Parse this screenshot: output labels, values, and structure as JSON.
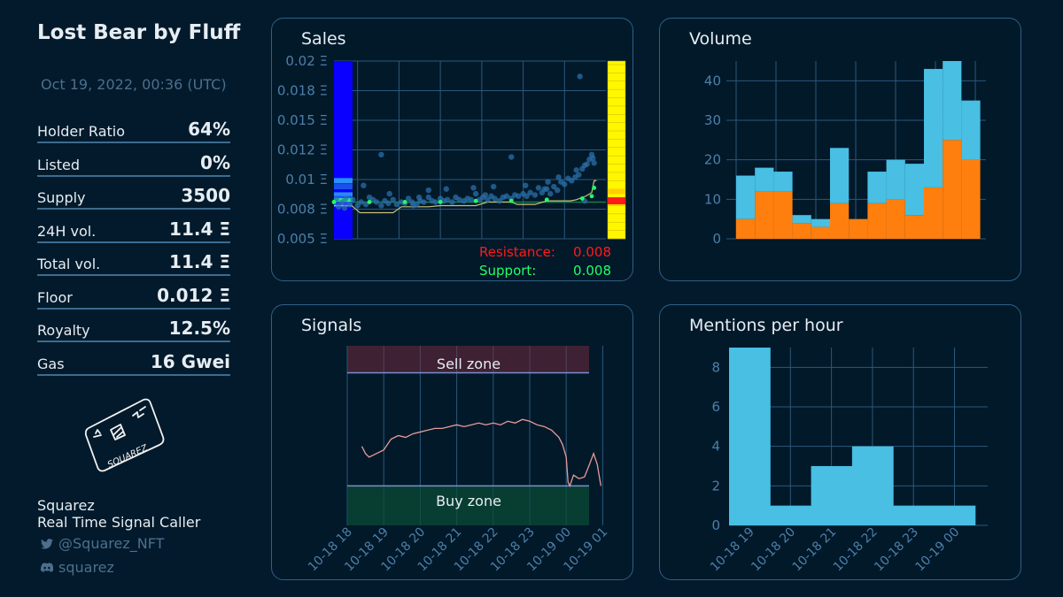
{
  "sidebar": {
    "title": "Lost Bear by Fluff",
    "date": "Oct 19, 2022, 00:36 (UTC)",
    "stats": [
      {
        "label": "Holder Ratio",
        "value": "64%"
      },
      {
        "label": "Listed",
        "value": "0%"
      },
      {
        "label": "Supply",
        "value": "3500"
      },
      {
        "label": "24H vol.",
        "value": "11.4 Ξ"
      },
      {
        "label": "Total vol.",
        "value": "11.4 Ξ"
      },
      {
        "label": "Floor",
        "value": "0.012 Ξ"
      },
      {
        "label": "Royalty",
        "value": "12.5%"
      },
      {
        "label": "Gas",
        "value": "16 Gwei"
      }
    ],
    "logo_text": "SQUAREZ",
    "brand_name": "Squarez",
    "brand_tagline": "Real Time Signal Caller",
    "twitter": "@Squarez_NFT",
    "discord": "squarez",
    "twitter_icon": "twitter-icon",
    "discord_icon": "discord-icon"
  },
  "colors": {
    "background": "#021a2b",
    "panel_border": "#2f5f84",
    "grid": "#2b587b",
    "tick": "#4d7fa8",
    "volume_blue": "#48bfe3",
    "volume_orange": "#ff7f0e",
    "resistance": "#ff1a1a",
    "support": "#22ff66"
  },
  "chart_data": [
    {
      "type": "scatter",
      "title": "Sales",
      "ytick_labels": [
        "0.005 Ξ",
        "0.008 Ξ",
        "0.01 Ξ",
        "0.012 Ξ",
        "0.015 Ξ",
        "0.018 Ξ",
        "0.02 Ξ"
      ],
      "ylim": [
        0.005,
        0.02
      ],
      "resistance_label": "Resistance:",
      "resistance_value": "0.008",
      "support_label": "Support:",
      "support_value": "0.008",
      "points": [
        [
          0.2,
          0.0083
        ],
        [
          0.4,
          0.0077
        ],
        [
          0.7,
          0.0081
        ],
        [
          1.0,
          0.0084
        ],
        [
          1.3,
          0.0079
        ],
        [
          1.6,
          0.0083
        ],
        [
          2.0,
          0.0078
        ],
        [
          2.3,
          0.0081
        ],
        [
          2.7,
          0.0079
        ],
        [
          3.0,
          0.0085
        ],
        [
          3.3,
          0.0083
        ],
        [
          3.6,
          0.0081
        ],
        [
          4.0,
          0.0078
        ],
        [
          4.3,
          0.0082
        ],
        [
          4.6,
          0.008
        ],
        [
          5.0,
          0.0083
        ],
        [
          5.3,
          0.0079
        ],
        [
          5.7,
          0.0081
        ],
        [
          6.0,
          0.008
        ],
        [
          6.3,
          0.0084
        ],
        [
          6.6,
          0.0081
        ],
        [
          7.0,
          0.0079
        ],
        [
          7.3,
          0.0082
        ],
        [
          7.6,
          0.0081
        ],
        [
          8.0,
          0.0085
        ],
        [
          8.3,
          0.0082
        ],
        [
          8.6,
          0.0081
        ],
        [
          9.0,
          0.0084
        ],
        [
          9.3,
          0.0082
        ],
        [
          9.6,
          0.0083
        ],
        [
          10.0,
          0.0081
        ],
        [
          10.3,
          0.0085
        ],
        [
          10.6,
          0.0083
        ],
        [
          11.0,
          0.0082
        ],
        [
          11.3,
          0.0084
        ],
        [
          11.6,
          0.0083
        ],
        [
          12.0,
          0.0088
        ],
        [
          12.3,
          0.0083
        ],
        [
          12.6,
          0.0085
        ],
        [
          13.0,
          0.0083
        ],
        [
          13.3,
          0.0086
        ],
        [
          13.6,
          0.0084
        ],
        [
          14.0,
          0.0082
        ],
        [
          14.3,
          0.0085
        ],
        [
          14.6,
          0.0086
        ],
        [
          15.0,
          0.0084
        ],
        [
          15.3,
          0.0087
        ],
        [
          15.6,
          0.0086
        ],
        [
          16.0,
          0.0088
        ],
        [
          16.3,
          0.0086
        ],
        [
          16.6,
          0.0089
        ],
        [
          17.0,
          0.0087
        ],
        [
          17.3,
          0.0093
        ],
        [
          17.6,
          0.0089
        ],
        [
          18.0,
          0.0092
        ],
        [
          18.3,
          0.0088
        ],
        [
          18.6,
          0.0094
        ],
        [
          18.9,
          0.0091
        ],
        [
          19.2,
          0.0098
        ],
        [
          19.5,
          0.0096
        ],
        [
          19.8,
          0.0101
        ],
        [
          20.1,
          0.0099
        ],
        [
          20.4,
          0.0102
        ],
        [
          20.7,
          0.0104
        ],
        [
          21.0,
          0.0109
        ],
        [
          21.2,
          0.0112
        ],
        [
          21.4,
          0.0113
        ],
        [
          21.6,
          0.0117
        ],
        [
          21.8,
          0.0121
        ],
        [
          22.0,
          0.0114
        ],
        [
          4.0,
          0.0121
        ],
        [
          9.5,
          0.0092
        ],
        [
          13.5,
          0.0094
        ],
        [
          16.2,
          0.0095
        ],
        [
          19.0,
          0.0102
        ],
        [
          20.5,
          0.0108
        ],
        [
          8.0,
          0.0091
        ],
        [
          2.5,
          0.0095
        ],
        [
          6.7,
          0.0078
        ],
        [
          11.8,
          0.0093
        ],
        [
          15.0,
          0.0119
        ],
        [
          17.8,
          0.0092
        ],
        [
          0.9,
          0.0076
        ],
        [
          4.7,
          0.0088
        ],
        [
          20.8,
          0.0187
        ],
        [
          21.9,
          0.0118
        ],
        [
          21.2,
          0.0082
        ],
        [
          18.1,
          0.0098
        ],
        [
          12.8,
          0.0087
        ],
        [
          7.2,
          0.0085
        ]
      ],
      "x_range": [
        0,
        23
      ],
      "support_points": [
        [
          0.0,
          0.0081
        ],
        [
          3.0,
          0.0081
        ],
        [
          6.0,
          0.0081
        ],
        [
          9.0,
          0.0081
        ],
        [
          12.0,
          0.0082
        ],
        [
          15.0,
          0.0082
        ],
        [
          18.0,
          0.0083
        ],
        [
          21.0,
          0.0084
        ],
        [
          21.8,
          0.0086
        ],
        [
          22.0,
          0.0093
        ]
      ],
      "median_line": [
        [
          0,
          0.0078
        ],
        [
          1.5,
          0.0078
        ],
        [
          2.2,
          0.0072
        ],
        [
          5,
          0.0072
        ],
        [
          5.7,
          0.0077
        ],
        [
          8,
          0.0077
        ],
        [
          9,
          0.0078
        ],
        [
          12,
          0.0078
        ],
        [
          13,
          0.0081
        ],
        [
          15,
          0.0081
        ],
        [
          15.5,
          0.0079
        ],
        [
          17,
          0.0079
        ],
        [
          18,
          0.0082
        ],
        [
          20,
          0.0082
        ],
        [
          20.5,
          0.0083
        ],
        [
          21.3,
          0.0086
        ],
        [
          21.8,
          0.0089
        ],
        [
          22.0,
          0.0099
        ],
        [
          22.2,
          0.0099
        ]
      ]
    },
    {
      "type": "bar",
      "title": "Volume",
      "yticks": [
        0,
        10,
        20,
        30,
        40
      ],
      "ylim": [
        0,
        45
      ],
      "series": [
        {
          "values": [
            5,
            12,
            12,
            4,
            3,
            9,
            5,
            9,
            10,
            6,
            13,
            25,
            20
          ]
        },
        {
          "values": [
            11,
            6,
            5,
            2,
            2,
            14,
            0,
            8,
            10,
            13,
            30,
            20,
            15
          ]
        }
      ]
    },
    {
      "type": "line",
      "title": "Signals",
      "sell_zone_label": "Sell zone",
      "buy_zone_label": "Buy zone",
      "x_tick_labels": [
        "10-18 18",
        "10-18 19",
        "10-18 20",
        "10-18 21",
        "10-18 22",
        "10-18 23",
        "10-19 00",
        "10-19 01"
      ],
      "ylim": [
        0,
        100
      ],
      "sell_level": 85,
      "buy_level": 22,
      "values": [
        [
          0.4,
          44
        ],
        [
          0.5,
          40
        ],
        [
          0.6,
          38
        ],
        [
          0.8,
          40
        ],
        [
          1.0,
          42
        ],
        [
          1.2,
          48
        ],
        [
          1.4,
          50
        ],
        [
          1.6,
          49
        ],
        [
          1.8,
          51
        ],
        [
          2.0,
          52
        ],
        [
          2.2,
          53
        ],
        [
          2.4,
          54
        ],
        [
          2.6,
          54
        ],
        [
          2.8,
          55
        ],
        [
          3.0,
          56
        ],
        [
          3.2,
          55
        ],
        [
          3.4,
          56
        ],
        [
          3.6,
          57
        ],
        [
          3.8,
          56
        ],
        [
          4.0,
          57
        ],
        [
          4.2,
          56
        ],
        [
          4.4,
          58
        ],
        [
          4.6,
          57
        ],
        [
          4.8,
          59
        ],
        [
          5.0,
          58
        ],
        [
          5.2,
          56
        ],
        [
          5.4,
          55
        ],
        [
          5.6,
          53
        ],
        [
          5.8,
          49
        ],
        [
          5.9,
          45
        ],
        [
          6.0,
          38
        ],
        [
          6.05,
          24
        ],
        [
          6.1,
          22
        ],
        [
          6.2,
          28
        ],
        [
          6.35,
          26
        ],
        [
          6.5,
          27
        ],
        [
          6.6,
          32
        ],
        [
          6.75,
          40
        ],
        [
          6.85,
          34
        ],
        [
          6.95,
          22
        ]
      ]
    },
    {
      "type": "bar",
      "title": "Mentions per hour",
      "categories": [
        "10-18 19",
        "10-18 20",
        "10-18 21",
        "10-18 22",
        "10-18 23",
        "10-19 00"
      ],
      "values": [
        9,
        1,
        3,
        4,
        1,
        1
      ],
      "yticks": [
        0,
        2,
        4,
        6,
        8
      ],
      "ylim": [
        0,
        9
      ]
    }
  ]
}
